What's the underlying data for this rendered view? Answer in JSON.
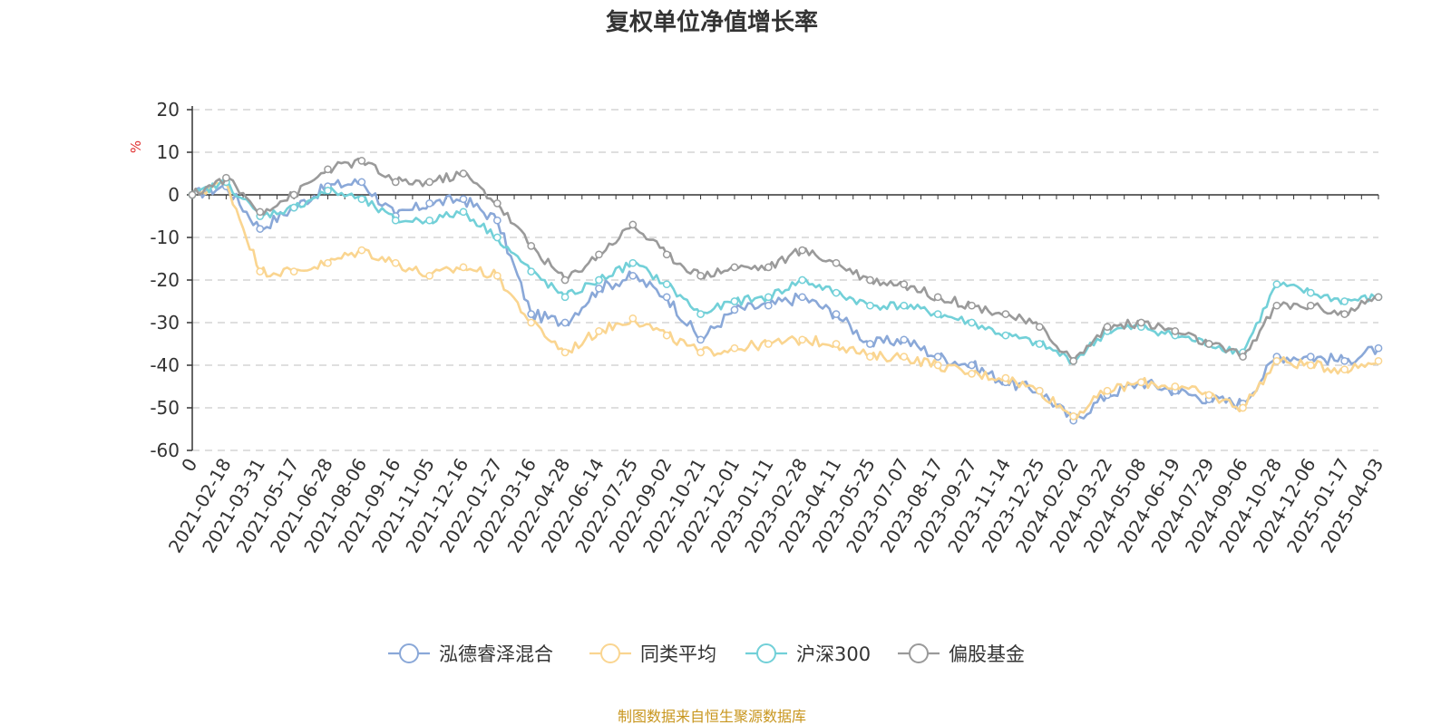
{
  "chart_data": {
    "type": "line",
    "title": "复权单位净值增长率",
    "ylabel": "%",
    "xlabel": "",
    "ylim": [
      -60,
      20
    ],
    "yticks": [
      20,
      10,
      0,
      -10,
      -20,
      -30,
      -40,
      -50,
      -60
    ],
    "grid": true,
    "x_origin_label": "0",
    "categories": [
      "2021-02-18",
      "2021-03-31",
      "2021-05-17",
      "2021-06-28",
      "2021-08-06",
      "2021-09-16",
      "2021-11-05",
      "2021-12-16",
      "2022-01-27",
      "2022-03-16",
      "2022-04-28",
      "2022-06-14",
      "2022-07-25",
      "2022-09-02",
      "2022-10-21",
      "2022-12-01",
      "2023-01-11",
      "2023-02-28",
      "2023-04-11",
      "2023-05-25",
      "2023-07-07",
      "2023-08-17",
      "2023-09-27",
      "2023-11-14",
      "2023-12-25",
      "2024-02-02",
      "2024-03-22",
      "2024-05-08",
      "2024-06-19",
      "2024-07-29",
      "2024-09-06",
      "2024-10-28",
      "2024-12-06",
      "2025-01-17",
      "2025-04-03"
    ],
    "legend_position": "bottom-center",
    "series": [
      {
        "name": "泓德睿泽混合",
        "color": "#8aa8d8",
        "values": [
          2,
          -8,
          -3,
          2,
          3,
          -5,
          -2,
          -1,
          -6,
          -28,
          -30,
          -22,
          -19,
          -24,
          -34,
          -27,
          -26,
          -24,
          -28,
          -35,
          -34,
          -38,
          -40,
          -44,
          -46,
          -53,
          -47,
          -44,
          -46,
          -48,
          -49,
          -38,
          -38,
          -39,
          -36
        ]
      },
      {
        "name": "同类平均",
        "color": "#fad590",
        "values": [
          3,
          -18,
          -18,
          -16,
          -13,
          -16,
          -19,
          -17,
          -19,
          -30,
          -37,
          -32,
          -29,
          -33,
          -37,
          -36,
          -35,
          -34,
          -35,
          -38,
          -38,
          -40,
          -42,
          -43,
          -46,
          -52,
          -46,
          -44,
          -45,
          -47,
          -50,
          -39,
          -40,
          -41,
          -39
        ]
      },
      {
        "name": "沪深300",
        "color": "#72d0d8",
        "values": [
          3,
          -5,
          -3,
          1,
          -1,
          -6,
          -6,
          -4,
          -10,
          -18,
          -24,
          -20,
          -16,
          -21,
          -28,
          -25,
          -24,
          -20,
          -23,
          -26,
          -26,
          -28,
          -30,
          -33,
          -35,
          -39,
          -32,
          -31,
          -33,
          -35,
          -37,
          -21,
          -23,
          -25,
          -24
        ]
      },
      {
        "name": "偏股基金",
        "color": "#9a9a9a",
        "values": [
          4,
          -4,
          0,
          6,
          8,
          3,
          3,
          5,
          -2,
          -12,
          -20,
          -14,
          -7,
          -14,
          -19,
          -17,
          -17,
          -13,
          -16,
          -20,
          -21,
          -24,
          -26,
          -28,
          -31,
          -39,
          -31,
          -30,
          -32,
          -35,
          -38,
          -26,
          -26,
          -28,
          -24
        ]
      }
    ]
  },
  "source_note": "制图数据来自恒生聚源数据库"
}
